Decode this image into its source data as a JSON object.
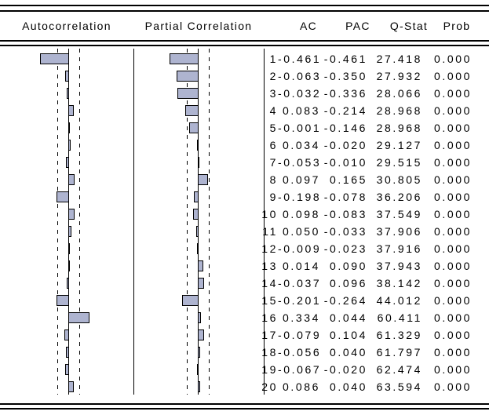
{
  "header": {
    "autocorrelation": "Autocorrelation",
    "partial_correlation": "Partial Correlation",
    "ac": "AC",
    "pac": "PAC",
    "qstat": "Q-Stat",
    "prob": "Prob"
  },
  "colors": {
    "bar_fill": "#aeb4d0",
    "bar_border": "#000000",
    "rule_line": "#000000",
    "background": "#ffffff",
    "text": "#000000"
  },
  "chart_data": {
    "type": "bar",
    "orientation": "horizontal",
    "categories": [
      1,
      2,
      3,
      4,
      5,
      6,
      7,
      8,
      9,
      10,
      11,
      12,
      13,
      14,
      15,
      16,
      17,
      18,
      19,
      20
    ],
    "series": [
      {
        "name": "Autocorrelation",
        "values": [
          -0.461,
          -0.063,
          -0.032,
          0.083,
          -0.001,
          0.034,
          -0.053,
          0.097,
          -0.198,
          0.098,
          0.05,
          -0.009,
          0.014,
          -0.037,
          -0.201,
          0.334,
          -0.079,
          -0.056,
          -0.067,
          0.086
        ]
      },
      {
        "name": "Partial Correlation",
        "values": [
          -0.461,
          -0.35,
          -0.336,
          -0.214,
          -0.146,
          -0.02,
          -0.01,
          0.165,
          -0.078,
          -0.083,
          -0.033,
          -0.023,
          0.09,
          0.096,
          -0.264,
          0.044,
          0.104,
          0.04,
          -0.02,
          0.04
        ]
      }
    ],
    "confidence_bounds": [
      -0.175,
      0.175
    ],
    "zero_axis": true,
    "grid": false,
    "legend_position": "none"
  },
  "table": {
    "rows": [
      {
        "lag": "1",
        "ac": "-0.461",
        "pac": "-0.461",
        "qstat": "27.418",
        "prob": "0.000"
      },
      {
        "lag": "2",
        "ac": "-0.063",
        "pac": "-0.350",
        "qstat": "27.932",
        "prob": "0.000"
      },
      {
        "lag": "3",
        "ac": "-0.032",
        "pac": "-0.336",
        "qstat": "28.066",
        "prob": "0.000"
      },
      {
        "lag": "4",
        "ac": "0.083",
        "pac": "-0.214",
        "qstat": "28.968",
        "prob": "0.000"
      },
      {
        "lag": "5",
        "ac": "-0.001",
        "pac": "-0.146",
        "qstat": "28.968",
        "prob": "0.000"
      },
      {
        "lag": "6",
        "ac": "0.034",
        "pac": "-0.020",
        "qstat": "29.127",
        "prob": "0.000"
      },
      {
        "lag": "7",
        "ac": "-0.053",
        "pac": "-0.010",
        "qstat": "29.515",
        "prob": "0.000"
      },
      {
        "lag": "8",
        "ac": "0.097",
        "pac": "0.165",
        "qstat": "30.805",
        "prob": "0.000"
      },
      {
        "lag": "9",
        "ac": "-0.198",
        "pac": "-0.078",
        "qstat": "36.206",
        "prob": "0.000"
      },
      {
        "lag": "10",
        "ac": "0.098",
        "pac": "-0.083",
        "qstat": "37.549",
        "prob": "0.000"
      },
      {
        "lag": "11",
        "ac": "0.050",
        "pac": "-0.033",
        "qstat": "37.906",
        "prob": "0.000"
      },
      {
        "lag": "12",
        "ac": "-0.009",
        "pac": "-0.023",
        "qstat": "37.916",
        "prob": "0.000"
      },
      {
        "lag": "13",
        "ac": "0.014",
        "pac": "0.090",
        "qstat": "37.943",
        "prob": "0.000"
      },
      {
        "lag": "14",
        "ac": "-0.037",
        "pac": "0.096",
        "qstat": "38.142",
        "prob": "0.000"
      },
      {
        "lag": "15",
        "ac": "-0.201",
        "pac": "-0.264",
        "qstat": "44.012",
        "prob": "0.000"
      },
      {
        "lag": "16",
        "ac": "0.334",
        "pac": "0.044",
        "qstat": "60.411",
        "prob": "0.000"
      },
      {
        "lag": "17",
        "ac": "-0.079",
        "pac": "0.104",
        "qstat": "61.329",
        "prob": "0.000"
      },
      {
        "lag": "18",
        "ac": "-0.056",
        "pac": "0.040",
        "qstat": "61.797",
        "prob": "0.000"
      },
      {
        "lag": "19",
        "ac": "-0.067",
        "pac": "-0.020",
        "qstat": "62.474",
        "prob": "0.000"
      },
      {
        "lag": "20",
        "ac": "0.086",
        "pac": "0.040",
        "qstat": "63.594",
        "prob": "0.000"
      }
    ]
  }
}
